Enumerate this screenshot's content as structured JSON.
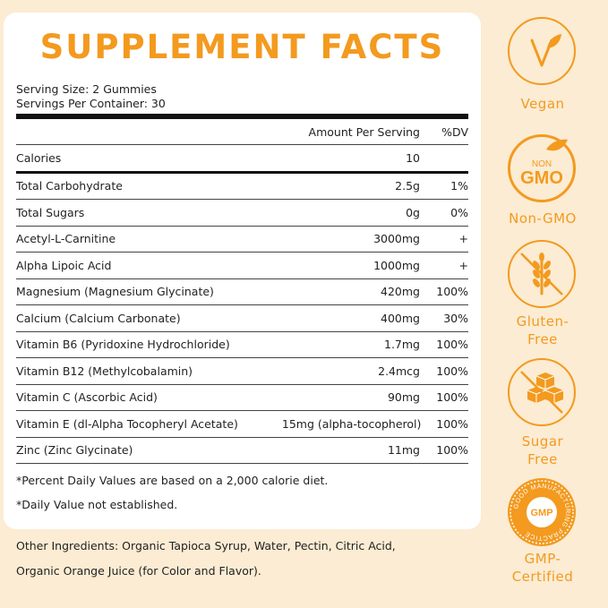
{
  "title": "SUPPLEMENT FACTS",
  "serving": {
    "size": "Serving Size: 2 Gummies",
    "per_container": "Servings Per Container: 30"
  },
  "header": {
    "amount": "Amount Per Serving",
    "dv": "%DV"
  },
  "rows": [
    {
      "name": "Calories",
      "amount": "10",
      "dv": ""
    },
    {
      "name": "Total Carbohydrate",
      "amount": "2.5g",
      "dv": "1%"
    },
    {
      "name": "Total Sugars",
      "amount": "0g",
      "dv": "0%"
    },
    {
      "name": "Acetyl-L-Carnitine",
      "amount": "3000mg",
      "dv": "+"
    },
    {
      "name": "Alpha Lipoic Acid",
      "amount": "1000mg",
      "dv": "+"
    },
    {
      "name": "Magnesium (Magnesium Glycinate)",
      "amount": "420mg",
      "dv": "100%"
    },
    {
      "name": "Calcium (Calcium Carbonate)",
      "amount": "400mg",
      "dv": "30%"
    },
    {
      "name": "Vitamin B6 (Pyridoxine Hydrochloride)",
      "amount": "1.7mg",
      "dv": "100%"
    },
    {
      "name": "Vitamin B12 (Methylcobalamin)",
      "amount": "2.4mcg",
      "dv": "100%"
    },
    {
      "name": "Vitamin C (Ascorbic Acid)",
      "amount": "90mg",
      "dv": "100%"
    },
    {
      "name": "Vitamin E (dl-Alpha Tocopheryl Acetate)",
      "amount": "15mg (alpha-tocopherol)",
      "dv": "100%"
    },
    {
      "name": "Zinc (Zinc Glycinate)",
      "amount": "11mg",
      "dv": "100%"
    }
  ],
  "footnotes": {
    "percent": "*Percent Daily Values are based on a 2,000 calorie diet.",
    "daily": "*Daily Value not established."
  },
  "other": {
    "line1": "Other Ingredients: Organic Tapioca Syrup, Water, Pectin, Citric Acid,",
    "line2": "Organic Orange Juice (for Color and Flavor)."
  },
  "badges": {
    "vegan": "Vegan",
    "nongmo": "Non-GMO",
    "nongmo_top": "NON",
    "nongmo_mid": "GMO",
    "gluten1": "Gluten-",
    "gluten2": "Free",
    "sugar1": "Sugar",
    "sugar2": "Free",
    "gmp": "GMP",
    "gmp_ring": "GOOD MANUFACTURING PRACTICE",
    "gmp1": "GMP-",
    "gmp2": "Certified"
  },
  "colors": {
    "accent": "#f39a1f",
    "background": "#fbecd3"
  },
  "icons": [
    "vegan-v-leaf-icon",
    "non-gmo-icon",
    "gluten-free-wheat-icon",
    "sugar-free-cubes-icon",
    "gmp-seal-icon"
  ]
}
